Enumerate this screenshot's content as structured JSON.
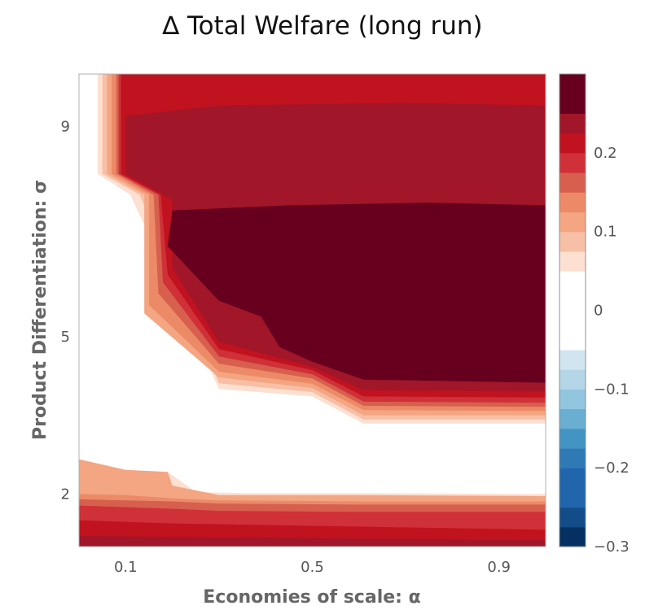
{
  "chart_data": {
    "type": "heatmap",
    "subtype": "filled-contour",
    "title": "∆ Total Welfare (long run)",
    "xlabel": "Economies of scale: α",
    "ylabel": "Product Differentiation: σ",
    "xlim": [
      0.0,
      1.0
    ],
    "ylim": [
      1.0,
      10.0
    ],
    "x_ticks": [
      0.1,
      0.5,
      0.9
    ],
    "x_tick_labels": [
      "0.1",
      "0.5",
      "0.9"
    ],
    "y_ticks": [
      2,
      5,
      9
    ],
    "y_tick_labels": [
      "2",
      "5",
      "9"
    ],
    "colorbar": {
      "range": [
        -0.3,
        0.3
      ],
      "ticks": [
        -0.3,
        -0.2,
        -0.1,
        0,
        0.1,
        0.2
      ],
      "tick_labels": [
        "−0.3",
        "−0.2",
        "−0.1",
        "0",
        "0.1",
        "0.2"
      ],
      "levels": [
        {
          "from": -0.3,
          "to": -0.275,
          "color": "#053061"
        },
        {
          "from": -0.275,
          "to": -0.25,
          "color": "#134c89"
        },
        {
          "from": -0.25,
          "to": -0.2,
          "color": "#2166ac"
        },
        {
          "from": -0.2,
          "to": -0.175,
          "color": "#2f79b5"
        },
        {
          "from": -0.175,
          "to": -0.15,
          "color": "#4393c3"
        },
        {
          "from": -0.15,
          "to": -0.125,
          "color": "#6aaed2"
        },
        {
          "from": -0.125,
          "to": -0.1,
          "color": "#92c5de"
        },
        {
          "from": -0.1,
          "to": -0.075,
          "color": "#b4d6e7"
        },
        {
          "from": -0.075,
          "to": -0.05,
          "color": "#d1e5f0"
        },
        {
          "from": -0.05,
          "to": 0.05,
          "color": "#ffffff"
        },
        {
          "from": 0.05,
          "to": 0.075,
          "color": "#fde0d1"
        },
        {
          "from": 0.075,
          "to": 0.1,
          "color": "#f7bfa6"
        },
        {
          "from": 0.1,
          "to": 0.125,
          "color": "#f4a582"
        },
        {
          "from": 0.125,
          "to": 0.15,
          "color": "#ec8a67"
        },
        {
          "from": 0.15,
          "to": 0.175,
          "color": "#d6604d"
        },
        {
          "from": 0.175,
          "to": 0.2,
          "color": "#d03038"
        },
        {
          "from": 0.2,
          "to": 0.225,
          "color": "#c1121f"
        },
        {
          "from": 0.225,
          "to": 0.25,
          "color": "#a11628"
        },
        {
          "from": 0.25,
          "to": 0.3,
          "color": "#67001f"
        }
      ]
    },
    "contour_regions": [
      {
        "value": 0.08,
        "color": "#fde0d1",
        "polygon": [
          [
            0.04,
            10.0
          ],
          [
            1.0,
            10.0
          ],
          [
            1.0,
            3.34
          ],
          [
            0.61,
            3.34
          ],
          [
            0.5,
            3.86
          ],
          [
            0.3,
            4.0
          ],
          [
            0.11,
            7.7
          ],
          [
            0.04,
            8.1
          ]
        ]
      },
      {
        "value": 0.09,
        "color": "#f7bfa6",
        "polygon": [
          [
            0.05,
            10.0
          ],
          [
            1.0,
            10.0
          ],
          [
            1.0,
            3.42
          ],
          [
            0.61,
            3.42
          ],
          [
            0.5,
            3.94
          ],
          [
            0.3,
            4.11
          ],
          [
            0.13,
            7.7
          ],
          [
            0.05,
            8.1
          ]
        ]
      },
      {
        "value": 0.11,
        "color": "#f4a582",
        "polygon": [
          [
            0.06,
            10.0
          ],
          [
            1.0,
            10.0
          ],
          [
            1.0,
            3.5
          ],
          [
            0.61,
            3.5
          ],
          [
            0.5,
            4.02
          ],
          [
            0.3,
            4.22
          ],
          [
            0.14,
            5.44
          ],
          [
            0.14,
            7.7
          ],
          [
            0.06,
            8.1
          ]
        ]
      },
      {
        "value": 0.14,
        "color": "#ec8a67",
        "polygon": [
          [
            0.07,
            10.0
          ],
          [
            1.0,
            10.0
          ],
          [
            1.0,
            3.58
          ],
          [
            0.61,
            3.6
          ],
          [
            0.5,
            4.1
          ],
          [
            0.3,
            4.33
          ],
          [
            0.15,
            5.6
          ],
          [
            0.15,
            7.7
          ],
          [
            0.07,
            8.1
          ]
        ]
      },
      {
        "value": 0.16,
        "color": "#d6604d",
        "polygon": [
          [
            0.08,
            10.0
          ],
          [
            1.0,
            10.0
          ],
          [
            1.0,
            3.66
          ],
          [
            0.61,
            3.68
          ],
          [
            0.5,
            4.2
          ],
          [
            0.3,
            4.48
          ],
          [
            0.17,
            5.82
          ],
          [
            0.16,
            7.7
          ],
          [
            0.08,
            8.1
          ]
        ]
      },
      {
        "value": 0.19,
        "color": "#d03038",
        "polygon": [
          [
            0.085,
            10.0
          ],
          [
            1.0,
            10.0
          ],
          [
            1.0,
            3.74
          ],
          [
            0.61,
            3.76
          ],
          [
            0.5,
            4.28
          ],
          [
            0.3,
            4.62
          ],
          [
            0.18,
            6.03
          ],
          [
            0.17,
            7.7
          ],
          [
            0.085,
            8.1
          ]
        ]
      },
      {
        "value": 0.21,
        "color": "#c1121f",
        "polygon": [
          [
            0.09,
            10.0
          ],
          [
            1.0,
            10.0
          ],
          [
            1.0,
            3.84
          ],
          [
            0.61,
            3.86
          ],
          [
            0.5,
            4.36
          ],
          [
            0.3,
            4.76
          ],
          [
            0.19,
            6.18
          ],
          [
            0.175,
            7.7
          ],
          [
            0.09,
            8.1
          ]
        ]
      },
      {
        "value": 0.235,
        "color": "#a11628",
        "polygon": [
          [
            0.1,
            9.2
          ],
          [
            0.3,
            9.4
          ],
          [
            0.7,
            9.45
          ],
          [
            1.0,
            9.4
          ],
          [
            1.0,
            3.96
          ],
          [
            0.61,
            3.98
          ],
          [
            0.5,
            4.42
          ],
          [
            0.3,
            4.9
          ],
          [
            0.2,
            6.3
          ],
          [
            0.2,
            7.6
          ],
          [
            0.1,
            8.1
          ]
        ]
      },
      {
        "value": 0.26,
        "color": "#67001f",
        "polygon": [
          [
            0.2,
            7.4
          ],
          [
            0.45,
            7.5
          ],
          [
            0.75,
            7.55
          ],
          [
            1.0,
            7.5
          ],
          [
            1.0,
            4.12
          ],
          [
            0.61,
            4.18
          ],
          [
            0.5,
            4.52
          ],
          [
            0.43,
            4.8
          ],
          [
            0.39,
            5.38
          ],
          [
            0.3,
            5.68
          ],
          [
            0.19,
            6.72
          ]
        ]
      },
      {
        "value": 0.19,
        "color": "#d03038",
        "polygon": [
          [
            0.0,
            1.0
          ],
          [
            1.0,
            1.0
          ],
          [
            1.0,
            1.58
          ],
          [
            0.0,
            1.76
          ]
        ]
      },
      {
        "value": 0.21,
        "color": "#c1121f",
        "polygon": [
          [
            0.0,
            1.0
          ],
          [
            1.0,
            1.0
          ],
          [
            1.0,
            1.26
          ],
          [
            0.0,
            1.4
          ]
        ]
      },
      {
        "value": 0.235,
        "color": "#a11628",
        "polygon": [
          [
            0.0,
            1.0
          ],
          [
            1.0,
            1.0
          ],
          [
            1.0,
            1.1
          ],
          [
            0.0,
            1.14
          ]
        ]
      },
      {
        "value": 0.08,
        "color": "#fde0d1",
        "polygon": [
          [
            0.0,
            2.66
          ],
          [
            0.1,
            2.46
          ],
          [
            0.19,
            2.42
          ],
          [
            0.25,
            2.04
          ],
          [
            0.35,
            2.02
          ],
          [
            0.6,
            2.02
          ],
          [
            1.0,
            2.0
          ],
          [
            1.0,
            1.0
          ],
          [
            0.0,
            1.0
          ]
        ]
      },
      {
        "value": 0.11,
        "color": "#f4a582",
        "polygon": [
          [
            0.0,
            2.66
          ],
          [
            0.1,
            2.46
          ],
          [
            0.19,
            2.42
          ],
          [
            0.2,
            2.16
          ],
          [
            0.3,
            1.98
          ],
          [
            0.6,
            1.98
          ],
          [
            1.0,
            1.96
          ],
          [
            1.0,
            1.0
          ],
          [
            0.0,
            1.0
          ]
        ]
      },
      {
        "value": 0.14,
        "color": "#ec8a67",
        "polygon": [
          [
            0.0,
            2.0
          ],
          [
            0.1,
            1.98
          ],
          [
            0.2,
            1.92
          ],
          [
            0.3,
            1.88
          ],
          [
            0.6,
            1.86
          ],
          [
            1.0,
            1.86
          ],
          [
            1.0,
            1.0
          ],
          [
            0.0,
            1.0
          ]
        ]
      },
      {
        "value": 0.16,
        "color": "#d6604d",
        "polygon": [
          [
            0.0,
            1.9
          ],
          [
            0.2,
            1.86
          ],
          [
            0.3,
            1.82
          ],
          [
            0.6,
            1.8
          ],
          [
            1.0,
            1.8
          ],
          [
            1.0,
            1.0
          ],
          [
            0.0,
            1.0
          ]
        ]
      },
      {
        "value": 0.19,
        "color": "#d03038",
        "polygon": [
          [
            0.0,
            1.78
          ],
          [
            0.2,
            1.72
          ],
          [
            0.3,
            1.68
          ],
          [
            0.6,
            1.66
          ],
          [
            1.0,
            1.66
          ],
          [
            1.0,
            1.0
          ],
          [
            0.0,
            1.0
          ]
        ]
      },
      {
        "value": 0.21,
        "color": "#c1121f",
        "polygon": [
          [
            0.0,
            1.5
          ],
          [
            0.2,
            1.44
          ],
          [
            1.0,
            1.32
          ],
          [
            1.0,
            1.0
          ],
          [
            0.0,
            1.0
          ]
        ]
      },
      {
        "value": 0.235,
        "color": "#a11628",
        "polygon": [
          [
            0.0,
            1.2
          ],
          [
            0.5,
            1.16
          ],
          [
            1.0,
            1.12
          ],
          [
            1.0,
            1.0
          ],
          [
            0.0,
            1.0
          ]
        ]
      }
    ]
  }
}
